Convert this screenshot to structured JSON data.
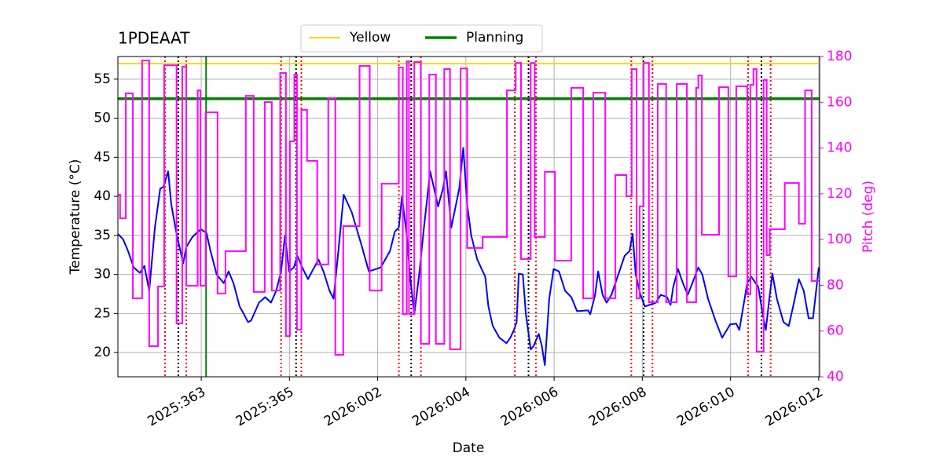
{
  "chart_data": {
    "type": "line",
    "title": "1PDEAAT",
    "xlabel": "Date",
    "ylabel": "Temperature (°C)",
    "y2label": "Pitch (deg)",
    "xlim": [
      361.11,
      377.02
    ],
    "ylim": [
      16.9,
      57.9
    ],
    "y2lim": [
      40,
      180
    ],
    "xticks": [
      {
        "value": 363,
        "label": "2025:363"
      },
      {
        "value": 365,
        "label": "2025:365"
      },
      {
        "value": 367,
        "label": "2026:002"
      },
      {
        "value": 369,
        "label": "2026:004"
      },
      {
        "value": 371,
        "label": "2026:006"
      },
      {
        "value": 373,
        "label": "2026:008"
      },
      {
        "value": 375,
        "label": "2026:010"
      },
      {
        "value": 377,
        "label": "2026:012"
      }
    ],
    "yticks": [
      20,
      25,
      30,
      35,
      40,
      45,
      50,
      55
    ],
    "y2ticks": [
      40,
      60,
      80,
      100,
      120,
      140,
      160,
      180
    ],
    "y2color": "#ff00ff",
    "grid": true,
    "legend": "top",
    "hlines": [
      {
        "name": "Yellow",
        "color": "#ffd700",
        "value": 57
      },
      {
        "name": "Planning",
        "color": "#008000",
        "value": 52.5
      }
    ],
    "vlines": [
      {
        "color": "#ff0000",
        "style": "dotted",
        "x": [
          362.18,
          362.66,
          364.81,
          365.27,
          367.48,
          367.98,
          370.11,
          370.59,
          372.75,
          373.23,
          375.4,
          375.91
        ]
      },
      {
        "color": "#000000",
        "style": "dotted",
        "x": [
          362.48,
          365.15,
          367.76,
          370.42,
          373.03,
          375.7
        ]
      },
      {
        "color": "#008000",
        "style": "solid",
        "x": [
          363.11
        ]
      }
    ],
    "series": [
      {
        "color": "#0000ff",
        "drawstyle": "line",
        "x": [
          361.11,
          361.23,
          361.34,
          361.47,
          361.61,
          361.71,
          361.82,
          361.95,
          362.07,
          362.14,
          362.25,
          362.32,
          362.43,
          362.59,
          362.66,
          362.8,
          362.99,
          363.12,
          363.21,
          363.35,
          363.51,
          363.62,
          363.73,
          363.87,
          363.97,
          364.06,
          364.13,
          364.31,
          364.45,
          364.58,
          364.7,
          364.81,
          364.9,
          364.99,
          365.1,
          365.18,
          365.29,
          365.42,
          365.56,
          365.66,
          365.77,
          365.91,
          366.0,
          366.11,
          366.23,
          366.41,
          366.62,
          366.8,
          367.07,
          367.28,
          367.39,
          367.48,
          367.55,
          367.66,
          367.73,
          367.83,
          367.94,
          368.05,
          368.19,
          368.28,
          368.37,
          368.48,
          368.55,
          368.67,
          368.85,
          368.94,
          369.03,
          369.12,
          369.26,
          369.44,
          369.51,
          369.61,
          369.76,
          369.92,
          370.01,
          370.09,
          370.15,
          370.2,
          370.29,
          370.36,
          370.47,
          370.54,
          370.65,
          370.72,
          370.79,
          370.89,
          370.99,
          371.11,
          371.25,
          371.39,
          371.52,
          371.77,
          371.82,
          371.93,
          372.0,
          372.1,
          372.19,
          372.3,
          372.42,
          372.6,
          372.71,
          372.78,
          372.85,
          372.96,
          373.06,
          373.31,
          373.42,
          373.56,
          373.64,
          373.7,
          373.81,
          373.92,
          374.03,
          374.17,
          374.27,
          374.36,
          374.49,
          374.67,
          374.81,
          374.99,
          375.13,
          375.2,
          375.29,
          375.38,
          375.47,
          375.63,
          375.73,
          375.8,
          375.88,
          375.95,
          376.05,
          376.2,
          376.32,
          376.44,
          376.55,
          376.66,
          376.77,
          376.87,
          377.0
        ],
        "values": [
          35.2,
          34.5,
          33.0,
          30.9,
          30.2,
          31.1,
          27.9,
          36.0,
          41.0,
          41.2,
          43.2,
          39.0,
          35.5,
          31.4,
          33.5,
          34.8,
          35.8,
          35.3,
          33.0,
          30.0,
          28.9,
          30.4,
          28.9,
          25.9,
          24.9,
          23.9,
          24.1,
          26.4,
          27.1,
          26.4,
          27.9,
          30.4,
          35.0,
          30.4,
          30.9,
          32.4,
          30.9,
          29.4,
          30.9,
          31.9,
          30.4,
          27.9,
          26.9,
          33.0,
          40.2,
          38.0,
          34.0,
          30.4,
          30.9,
          33.0,
          35.5,
          36.0,
          40.0,
          35.0,
          30.0,
          24.9,
          30.0,
          36.0,
          43.2,
          41.0,
          38.7,
          41.0,
          43.2,
          36.0,
          41.0,
          46.2,
          39.0,
          35.0,
          31.9,
          29.7,
          25.9,
          23.4,
          21.9,
          21.2,
          21.9,
          22.9,
          23.9,
          30.1,
          30.0,
          24.9,
          20.4,
          20.9,
          22.4,
          20.9,
          18.4,
          26.9,
          30.7,
          30.4,
          27.9,
          27.1,
          25.3,
          25.4,
          24.9,
          27.4,
          30.4,
          27.4,
          26.4,
          27.4,
          29.4,
          32.4,
          33.0,
          35.2,
          30.0,
          27.4,
          25.9,
          26.4,
          27.4,
          27.1,
          26.1,
          28.4,
          30.7,
          28.9,
          27.4,
          29.4,
          30.9,
          30.0,
          26.9,
          23.9,
          21.9,
          23.6,
          23.7,
          22.9,
          25.9,
          28.9,
          29.7,
          28.4,
          24.9,
          22.9,
          26.9,
          30.1,
          26.9,
          23.9,
          23.4,
          26.4,
          29.4,
          27.9,
          24.4,
          24.4,
          30.9
        ]
      },
      {
        "color": "#ff00ff",
        "axis": "y2",
        "drawstyle": "steps-post",
        "x": [
          361.11,
          361.16,
          361.29,
          361.45,
          361.66,
          361.82,
          362.02,
          362.16,
          362.44,
          362.57,
          362.66,
          362.92,
          362.98,
          363.1,
          363.37,
          363.55,
          364.01,
          364.19,
          364.44,
          364.6,
          364.79,
          364.92,
          365.01,
          365.11,
          365.17,
          365.27,
          365.4,
          365.63,
          365.88,
          366.04,
          366.22,
          366.59,
          366.82,
          367.09,
          367.48,
          367.57,
          367.66,
          367.71,
          367.83,
          367.98,
          368.17,
          368.32,
          368.51,
          368.64,
          368.88,
          369.03,
          369.38,
          369.93,
          370.13,
          370.25,
          370.47,
          370.56,
          370.79,
          371.02,
          371.39,
          371.66,
          371.89,
          372.16,
          372.39,
          372.64,
          372.76,
          372.87,
          372.94,
          373.03,
          373.15,
          373.35,
          373.54,
          373.78,
          374.01,
          374.22,
          374.27,
          374.35,
          374.74,
          374.95,
          375.13,
          375.38,
          375.45,
          375.52,
          375.59,
          375.75,
          375.82,
          375.89,
          376.23,
          376.55,
          376.69,
          376.84
        ],
        "values": [
          119.6,
          109.3,
          163.9,
          74.3,
          178.3,
          53.4,
          79.5,
          176.2,
          63.3,
          175.5,
          79.8,
          165.2,
          79.8,
          155.6,
          76.4,
          94.9,
          162.8,
          77.1,
          160.1,
          77.7,
          172.8,
          57.8,
          142.9,
          172.1,
          60.6,
          156.7,
          134.4,
          89.1,
          161.8,
          49.6,
          105.9,
          175.9,
          77.7,
          124.4,
          175.2,
          67.4,
          177.9,
          67.4,
          177.6,
          54.4,
          172.1,
          54.4,
          174.5,
          52.0,
          174.8,
          96.3,
          101.1,
          165.2,
          177.2,
          91.5,
          177.2,
          101.1,
          129.6,
          90.8,
          166.3,
          74.3,
          164.2,
          74.3,
          128.2,
          118.9,
          174.5,
          74.3,
          114.5,
          177.2,
          72.6,
          168.0,
          72.6,
          168.0,
          72.6,
          166.3,
          171.7,
          102.1,
          166.6,
          83.9,
          167.0,
          76.0,
          167.6,
          174.5,
          51.0,
          169.7,
          93.2,
          104.5,
          124.7,
          106.9,
          165.2,
          81.9
        ]
      }
    ]
  }
}
